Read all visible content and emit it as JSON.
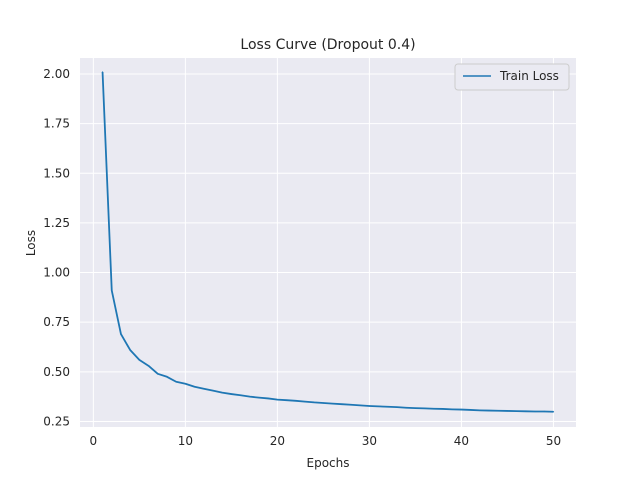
{
  "chart_data": {
    "type": "line",
    "title": "Loss Curve (Dropout 0.4)",
    "xlabel": "Epochs",
    "ylabel": "Loss",
    "xlim": [
      -1.45,
      52.45
    ],
    "ylim": [
      0.2221,
      2.0805
    ],
    "xticks": [
      0,
      10,
      20,
      30,
      40,
      50
    ],
    "yticks": [
      0.25,
      0.5,
      0.75,
      1.0,
      1.25,
      1.5,
      1.75,
      2.0
    ],
    "xtick_labels": [
      "0",
      "10",
      "20",
      "30",
      "40",
      "50"
    ],
    "ytick_labels": [
      "0.25",
      "0.50",
      "0.75",
      "1.00",
      "1.25",
      "1.50",
      "1.75",
      "2.00"
    ],
    "grid": true,
    "legend_position": "top-right",
    "series": [
      {
        "name": "Train Loss",
        "color": "#1f77b4",
        "x": [
          1,
          2,
          3,
          4,
          5,
          6,
          7,
          8,
          9,
          10,
          11,
          12,
          13,
          14,
          15,
          16,
          17,
          18,
          19,
          20,
          21,
          22,
          23,
          24,
          25,
          26,
          27,
          28,
          29,
          30,
          31,
          32,
          33,
          34,
          35,
          36,
          37,
          38,
          39,
          40,
          41,
          42,
          43,
          44,
          45,
          46,
          47,
          48,
          49,
          50
        ],
        "values": [
          2.01,
          0.91,
          0.69,
          0.61,
          0.56,
          0.53,
          0.49,
          0.475,
          0.45,
          0.44,
          0.425,
          0.415,
          0.405,
          0.395,
          0.388,
          0.382,
          0.375,
          0.37,
          0.366,
          0.36,
          0.357,
          0.354,
          0.35,
          0.346,
          0.343,
          0.34,
          0.337,
          0.334,
          0.331,
          0.328,
          0.326,
          0.324,
          0.322,
          0.319,
          0.317,
          0.316,
          0.314,
          0.313,
          0.311,
          0.31,
          0.308,
          0.306,
          0.305,
          0.304,
          0.303,
          0.302,
          0.301,
          0.3,
          0.3,
          0.299
        ]
      }
    ]
  }
}
